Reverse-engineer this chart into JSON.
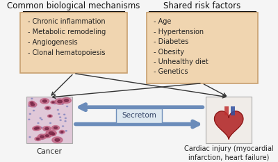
{
  "bg_color": "#f5f5f5",
  "box_left_title": "Common biological mechanisms",
  "box_left_items": [
    "- Chronic inflammation",
    "- Metabolic remodeling",
    "- Angiogenesis",
    "- Clonal hematopoiesis"
  ],
  "box_right_title": "Shared risk factors",
  "box_right_items": [
    "- Age",
    "- Hypertension",
    "- Diabetes",
    "- Obesity",
    "- Unhealthy diet",
    "- Genetics"
  ],
  "box_bg": "#f0d5b0",
  "box_edge": "#c8a070",
  "title_color": "#111111",
  "text_color": "#222222",
  "arrow_color": "#6b8cba",
  "line_color": "#333333",
  "secretom_label": "Secretom",
  "cancer_label": "Cancer",
  "cardiac_label": "Cardiac injury (myocardial\ninfarction, heart failure)",
  "label_fontsize": 7.5,
  "title_fontsize": 8.5,
  "item_fontsize": 7.0
}
